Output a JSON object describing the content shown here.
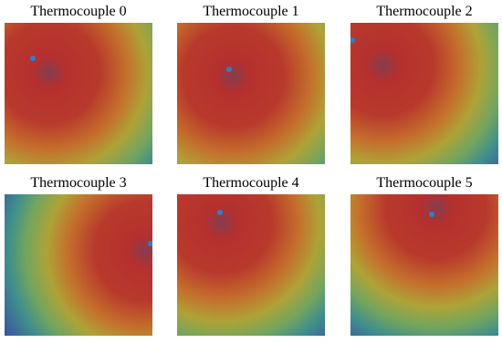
{
  "panels": [
    {
      "title": "Thermocouple 0"
    },
    {
      "title": "Thermocouple 1"
    },
    {
      "title": "Thermocouple 2"
    },
    {
      "title": "Thermocouple 3"
    },
    {
      "title": "Thermocouple 4"
    },
    {
      "title": "Thermocouple 5"
    }
  ]
}
